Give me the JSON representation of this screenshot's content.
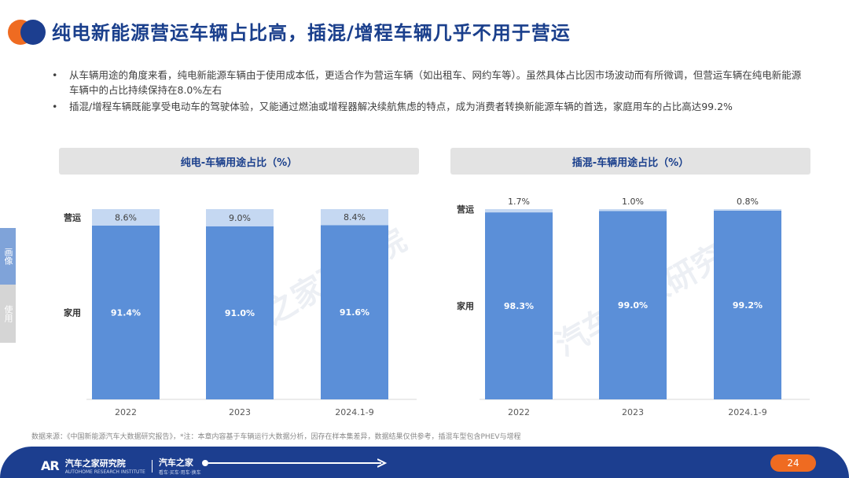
{
  "header": {
    "title": "纯电新能源营运车辆占比高，插混/增程车辆几乎不用于营运"
  },
  "bullets": [
    "从车辆用途的角度来看，纯电新能源车辆由于使用成本低，更适合作为营运车辆（如出租车、网约车等）。虽然具体占比因市场波动而有所微调，但营运车辆在纯电新能源车辆中的占比持续保持在8.0%左右",
    "插混/增程车辆既能享受电动车的驾驶体验，又能通过燃油或增程器解决续航焦虑的特点，成为消费者转换新能源车辆的首选，家庭用车的占比高达99.2%"
  ],
  "bullet_symbol": "•",
  "side_tabs": [
    "画像",
    "使用"
  ],
  "watermark_text": "汽车之家研究院",
  "colors": {
    "family": "#5b8fd8",
    "commercial": "#c5d8f2",
    "accent": "#ef6b21",
    "brand": "#1c3e8f"
  },
  "chart_data": [
    {
      "type": "bar",
      "stacked": true,
      "title": "纯电-车辆用途占比（%）",
      "categories": [
        "2022",
        "2023",
        "2024.1-9"
      ],
      "series": [
        {
          "name": "家用",
          "values": [
            91.4,
            91.0,
            91.6
          ],
          "labels": [
            "91.4%",
            "91.0%",
            "91.6%"
          ]
        },
        {
          "name": "营运",
          "values": [
            8.6,
            9.0,
            8.4
          ],
          "labels": [
            "8.6%",
            "9.0%",
            "8.4%"
          ]
        }
      ],
      "ylim": [
        0,
        100
      ]
    },
    {
      "type": "bar",
      "stacked": true,
      "title": "插混-车辆用途占比（%）",
      "categories": [
        "2022",
        "2023",
        "2024.1-9"
      ],
      "series": [
        {
          "name": "家用",
          "values": [
            98.3,
            99.0,
            99.2
          ],
          "labels": [
            "98.3%",
            "99.0%",
            "99.2%"
          ]
        },
        {
          "name": "营运",
          "values": [
            1.7,
            1.0,
            0.8
          ],
          "labels": [
            "1.7%",
            "1.0%",
            "0.8%"
          ]
        }
      ],
      "ylim": [
        0,
        100
      ]
    }
  ],
  "footnote": "数据来源：《中国新能源汽车大数据研究报告》，*注：本章内容基于车辆运行大数据分析，因存在样本集差异，数据结果仅供参考，插混车型包含PHEV与增程",
  "footer": {
    "logo_mark": "AR",
    "brand1": "汽车之家研究院",
    "brand1_sub": "AUTOHOME RESEARCH INSTITUTE",
    "brand2": "汽车之家",
    "brand2_sub": "看车·买车·用车·换车",
    "page_number": "24"
  }
}
